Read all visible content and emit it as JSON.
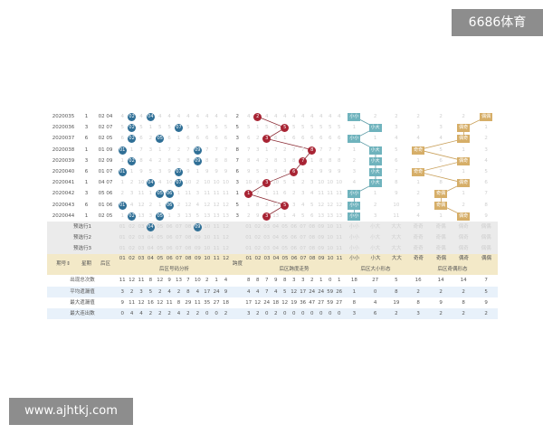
{
  "watermark_top": "6686体育",
  "watermark_bottom": "www.ajhtkj.com",
  "colors": {
    "number_ball": "#2f6f96",
    "span_ball": "#a82434",
    "size_tag": "#6fb3bd",
    "oddeven_tag": "#d6ae68",
    "header_bg": "#f3e9c8"
  },
  "draws": [
    {
      "issue": "2020035",
      "weekday": "1",
      "back": [
        "02",
        "04"
      ],
      "span": 2,
      "size": "小小",
      "oddeven": "偶偶"
    },
    {
      "issue": "2020036",
      "weekday": "3",
      "back": [
        "02",
        "07"
      ],
      "span": 5,
      "size": "小大",
      "oddeven": "偶奇"
    },
    {
      "issue": "2020037",
      "weekday": "6",
      "back": [
        "02",
        "05"
      ],
      "span": 3,
      "size": "小小",
      "oddeven": "偶奇"
    },
    {
      "issue": "2020038",
      "weekday": "1",
      "back": [
        "01",
        "09"
      ],
      "span": 8,
      "size": "小大",
      "oddeven": "奇奇"
    },
    {
      "issue": "2020039",
      "weekday": "3",
      "back": [
        "02",
        "09"
      ],
      "span": 7,
      "size": "小大",
      "oddeven": "偶奇"
    },
    {
      "issue": "2020040",
      "weekday": "6",
      "back": [
        "01",
        "07"
      ],
      "span": 6,
      "size": "小大",
      "oddeven": "奇奇"
    },
    {
      "issue": "2020041",
      "weekday": "1",
      "back": [
        "04",
        "07"
      ],
      "span": 3,
      "size": "小大",
      "oddeven": "偶奇"
    },
    {
      "issue": "2020042",
      "weekday": "3",
      "back": [
        "05",
        "06"
      ],
      "span": 1,
      "size": "小小",
      "oddeven": "奇偶"
    },
    {
      "issue": "2020043",
      "weekday": "6",
      "back": [
        "01",
        "06"
      ],
      "span": 5,
      "size": "小小",
      "oddeven": "奇偶"
    },
    {
      "issue": "2020044",
      "weekday": "1",
      "back": [
        "02",
        "05"
      ],
      "span": 3,
      "size": "小小",
      "oddeven": "偶奇"
    }
  ],
  "numbers": [
    "01",
    "02",
    "03",
    "04",
    "05",
    "06",
    "07",
    "08",
    "09",
    "10",
    "11",
    "12"
  ],
  "span_cols": [
    "01",
    "02",
    "03",
    "04",
    "05",
    "06",
    "07",
    "08",
    "09",
    "10",
    "11"
  ],
  "size_cols": [
    "小小",
    "小大",
    "大大"
  ],
  "oddeven_cols": [
    "奇奇",
    "奇偶",
    "偶奇",
    "偶偶"
  ],
  "predict_rows": [
    {
      "label": "预选行1",
      "selected": [
        "04",
        "09"
      ]
    },
    {
      "label": "预选行2",
      "selected": []
    },
    {
      "label": "预选行3",
      "selected": []
    }
  ],
  "header": {
    "issue": "期号⇕",
    "weekday": "星期",
    "back": "后区",
    "number_group": "后区号码分析",
    "span": "跨度",
    "span_group": "后区跨度走势",
    "size_group": "后区大小形态",
    "oddeven_group": "后区奇偶形态"
  },
  "stats": [
    {
      "label": "出现总次数",
      "numbers": [
        11,
        12,
        11,
        8,
        12,
        9,
        13,
        7,
        10,
        2,
        1,
        4
      ],
      "span": [
        8,
        8,
        7,
        9,
        8,
        3,
        3,
        2,
        1,
        0,
        1
      ],
      "size": [
        18,
        27,
        5
      ],
      "oddeven": [
        16,
        14,
        14,
        7
      ]
    },
    {
      "label": "平均遗漏值",
      "numbers": [
        3,
        2,
        3,
        5,
        2,
        4,
        2,
        8,
        4,
        17,
        24,
        9
      ],
      "span": [
        4,
        4,
        7,
        4,
        5,
        12,
        17,
        24,
        24,
        59,
        26
      ],
      "size": [
        1,
        0,
        8
      ],
      "oddeven": [
        2,
        2,
        2,
        5
      ]
    },
    {
      "label": "最大遗漏值",
      "numbers": [
        9,
        11,
        12,
        16,
        12,
        11,
        8,
        29,
        11,
        35,
        27,
        18
      ],
      "span": [
        17,
        12,
        24,
        18,
        12,
        19,
        36,
        47,
        27,
        59,
        27
      ],
      "size": [
        8,
        4,
        19
      ],
      "oddeven": [
        8,
        9,
        8,
        9
      ]
    },
    {
      "label": "最大连出数",
      "numbers": [
        0,
        4,
        4,
        2,
        2,
        2,
        4,
        2,
        2,
        0,
        0,
        2
      ],
      "span": [
        3,
        2,
        0,
        2,
        0,
        0,
        0,
        0,
        0,
        0,
        0
      ],
      "size": [
        3,
        6,
        2
      ],
      "oddeven": [
        3,
        2,
        2,
        2
      ]
    }
  ]
}
